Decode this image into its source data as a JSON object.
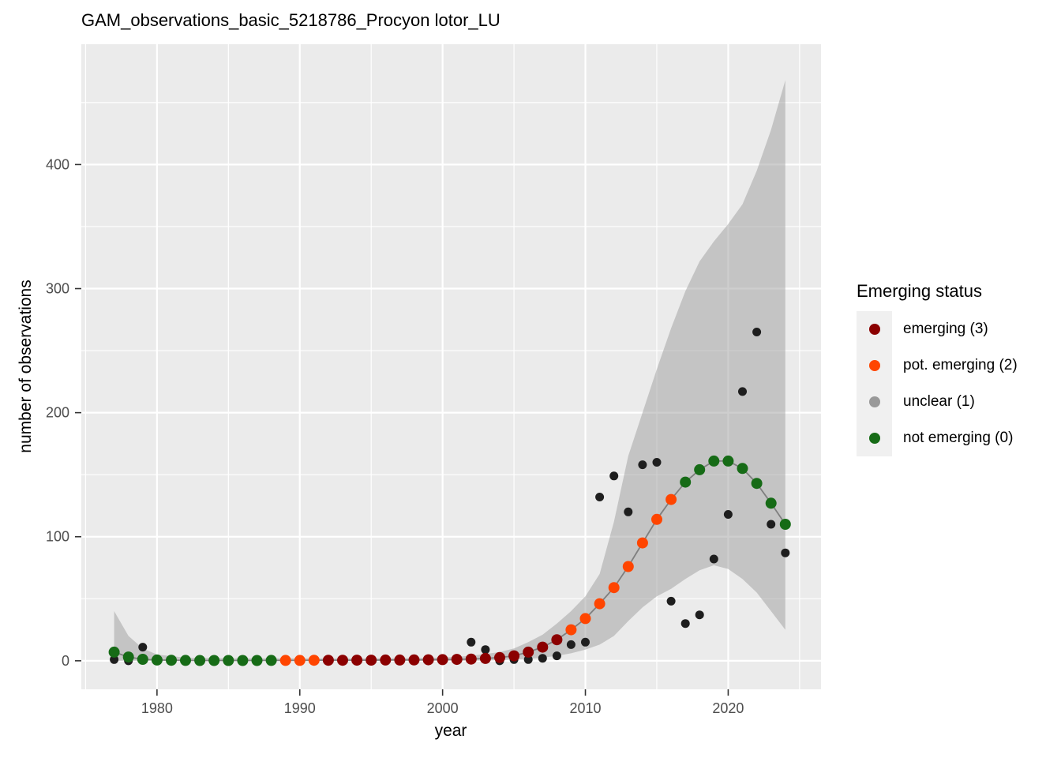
{
  "chart_data": {
    "type": "line",
    "title": "GAM_observations_basic_5218786_Procyon lotor_LU",
    "xlabel": "year",
    "ylabel": "number of observations",
    "xlim": [
      1974.7,
      2026.5
    ],
    "ylim": [
      -23,
      497
    ],
    "grid": true,
    "x_ticks": [
      1980,
      1990,
      2000,
      2010,
      2020
    ],
    "x_tick_labels": [
      "1980",
      "1990",
      "2000",
      "2010",
      "2020"
    ],
    "x_minor_ticks": [
      1975,
      1985,
      1995,
      2005,
      2015,
      2025
    ],
    "y_ticks": [
      0,
      100,
      200,
      300,
      400
    ],
    "y_tick_labels": [
      "0",
      "100",
      "200",
      "300",
      "400"
    ],
    "y_minor_ticks": [
      50,
      150,
      250,
      350,
      450
    ],
    "legend": {
      "title": "Emerging status",
      "position": "right",
      "items": [
        {
          "label": "emerging (3)",
          "status": 3
        },
        {
          "label": "pot. emerging (2)",
          "status": 2
        },
        {
          "label": "unclear (1)",
          "status": 1
        },
        {
          "label": "not emerging (0)",
          "status": 0
        }
      ]
    },
    "series": [
      {
        "name": "gam_fit",
        "years": [
          1977,
          1978,
          1979,
          1980,
          1981,
          1982,
          1983,
          1984,
          1985,
          1986,
          1987,
          1988,
          1989,
          1990,
          1991,
          1992,
          1993,
          1994,
          1995,
          1996,
          1997,
          1998,
          1999,
          2000,
          2001,
          2002,
          2003,
          2004,
          2005,
          2006,
          2007,
          2008,
          2009,
          2010,
          2011,
          2012,
          2013,
          2014,
          2015,
          2016,
          2017,
          2018,
          2019,
          2020,
          2021,
          2022,
          2023,
          2024
        ],
        "values": [
          7,
          3,
          1.2,
          0.6,
          0.4,
          0.3,
          0.2,
          0.2,
          0.2,
          0.2,
          0.2,
          0.3,
          0.3,
          0.3,
          0.4,
          0.4,
          0.4,
          0.5,
          0.5,
          0.6,
          0.6,
          0.7,
          0.8,
          0.9,
          1.1,
          1.4,
          1.9,
          2.6,
          4,
          7,
          11,
          17,
          25,
          34,
          46,
          59,
          76,
          95,
          114,
          130,
          144,
          154,
          161,
          161,
          155,
          143,
          127,
          110
        ],
        "status": [
          0,
          0,
          0,
          0,
          0,
          0,
          0,
          0,
          0,
          0,
          0,
          0,
          2,
          2,
          2,
          3,
          3,
          3,
          3,
          3,
          3,
          3,
          3,
          3,
          3,
          3,
          3,
          3,
          3,
          3,
          3,
          3,
          2,
          2,
          2,
          2,
          2,
          2,
          2,
          2,
          0,
          0,
          0,
          0,
          0,
          0,
          0,
          0
        ]
      },
      {
        "name": "observations",
        "years": [
          1977,
          1978,
          1979,
          2002,
          2003,
          2004,
          2005,
          2006,
          2007,
          2008,
          2009,
          2010,
          2011,
          2012,
          2013,
          2014,
          2015,
          2016,
          2017,
          2018,
          2019,
          2020,
          2021,
          2022,
          2023,
          2024
        ],
        "values": [
          1,
          0,
          11,
          15,
          9,
          0,
          1,
          1,
          2,
          4,
          13,
          15,
          132,
          149,
          120,
          158,
          160,
          48,
          30,
          37,
          82,
          118,
          217,
          265,
          110,
          87
        ]
      }
    ],
    "ribbon": {
      "years": [
        1977,
        1978,
        1979,
        1980,
        1982,
        1985,
        1990,
        1995,
        2000,
        2002,
        2004,
        2005,
        2006,
        2007,
        2008,
        2009,
        2010,
        2011,
        2012,
        2013,
        2014,
        2015,
        2016,
        2017,
        2018,
        2019,
        2020,
        2021,
        2022,
        2023,
        2024
      ],
      "upper": [
        40,
        20,
        10,
        5,
        2.5,
        2,
        2,
        2,
        2.5,
        4,
        7,
        10,
        15,
        21,
        30,
        40,
        52,
        70,
        112,
        165,
        200,
        235,
        268,
        298,
        322,
        338,
        352,
        368,
        395,
        428,
        468
      ],
      "lower": [
        0,
        0,
        0,
        0,
        0,
        0,
        0,
        0,
        0,
        0,
        0.5,
        1,
        1.5,
        2.5,
        4,
        6,
        9,
        13,
        20,
        32,
        43,
        52,
        58,
        66,
        73,
        77,
        74,
        66,
        55,
        40,
        25
      ]
    }
  },
  "colors": {
    "panel_bg": "#EBEBEB",
    "ribbon": "#9E9E9E",
    "grid": "#FFFFFF",
    "trend_line": "#7F7F7F",
    "observation": "#1E1E1E",
    "tick": "#333333",
    "tick_label": "#4D4D4D",
    "text": "#000000",
    "legend_key_bg": "#F0F0F0",
    "status_colors": {
      "3": "#8B0000",
      "2": "#FF4500",
      "1": "#999999",
      "0": "#166B16"
    }
  }
}
